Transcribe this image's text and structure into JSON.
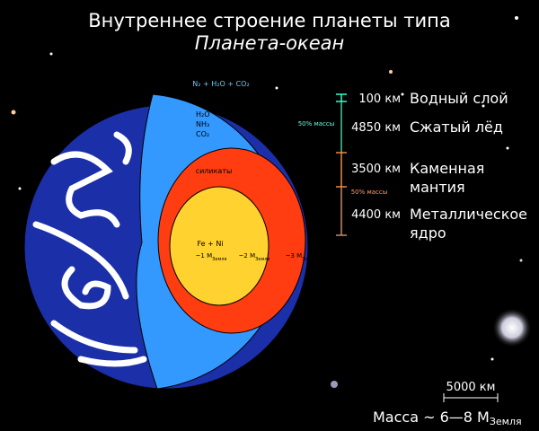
{
  "header": {
    "title": "Внутреннее строение планеты типа",
    "subtitle": "Планета-океан"
  },
  "atmosphere": {
    "text": "N₂ + H₂O + CO₂"
  },
  "ice_gases": [
    "H₂O",
    "NH₃",
    "CO₂"
  ],
  "mass_notes": {
    "water_ice": "50% массы",
    "rock_metal": "50% массы"
  },
  "materials": {
    "silicates": "силикаты",
    "core": "Fe + Ni"
  },
  "masses": [
    {
      "text": "~1 M",
      "sub": "Земля"
    },
    {
      "text": "~2 M",
      "sub": "Земля"
    },
    {
      "text": "~3 M",
      "sub": "Земля"
    }
  ],
  "layers": [
    {
      "thickness": "100 км",
      "name": [
        "Водный слой"
      ]
    },
    {
      "thickness": "4850 км",
      "name": [
        "Сжатый лёд"
      ]
    },
    {
      "thickness": "3500 км",
      "name": [
        "Каменная",
        "мантия"
      ]
    },
    {
      "thickness": "4400 км",
      "name": [
        "Металлическое",
        "ядро"
      ]
    }
  ],
  "scale_bar": "5000 км",
  "total_mass": {
    "text": "Масса ~ 6—8 M",
    "sub": "Земля"
  }
}
